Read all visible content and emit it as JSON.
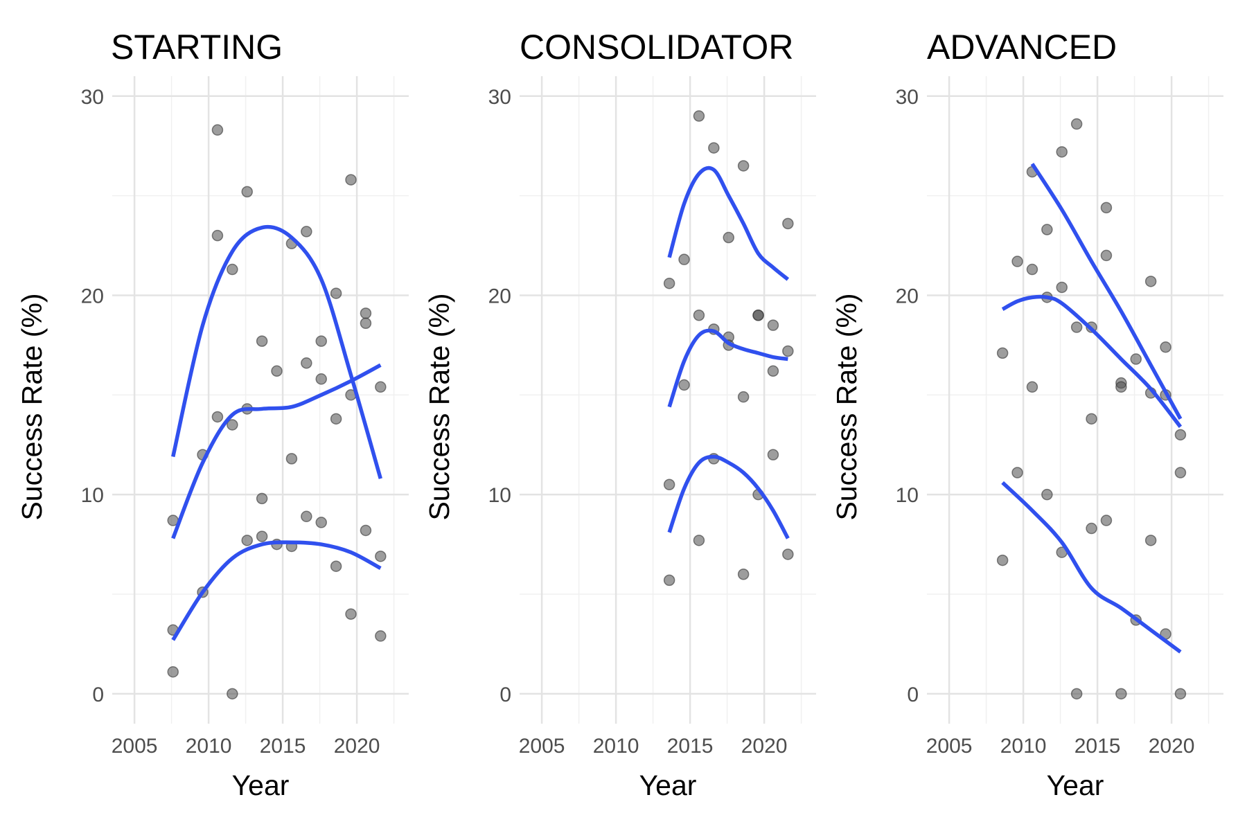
{
  "chart_data": [
    {
      "type": "scatter",
      "title": "STARTING",
      "xlabel": "Year",
      "ylabel": "Success Rate (%)",
      "xlim": [
        2003.5,
        2023.5
      ],
      "ylim": [
        -1.5,
        31
      ],
      "xticks": [
        "2005",
        "2010",
        "2015",
        "2020"
      ],
      "yticks": [
        "0",
        "10",
        "20",
        "30"
      ],
      "grid": true,
      "colors": {
        "points": "#4d4d4d",
        "smooth": "#3050ee"
      },
      "points": [
        {
          "x": 2007.6,
          "y": 8.7
        },
        {
          "x": 2007.6,
          "y": 3.2
        },
        {
          "x": 2007.6,
          "y": 1.1
        },
        {
          "x": 2009.6,
          "y": 12.0
        },
        {
          "x": 2009.6,
          "y": 5.1
        },
        {
          "x": 2010.6,
          "y": 28.3
        },
        {
          "x": 2010.6,
          "y": 23.0
        },
        {
          "x": 2010.6,
          "y": 13.9
        },
        {
          "x": 2011.6,
          "y": 21.3
        },
        {
          "x": 2011.6,
          "y": 13.5
        },
        {
          "x": 2011.6,
          "y": 0.0
        },
        {
          "x": 2012.6,
          "y": 25.2
        },
        {
          "x": 2012.6,
          "y": 14.3
        },
        {
          "x": 2012.6,
          "y": 7.7
        },
        {
          "x": 2013.6,
          "y": 17.7
        },
        {
          "x": 2013.6,
          "y": 9.8
        },
        {
          "x": 2013.6,
          "y": 7.9
        },
        {
          "x": 2014.6,
          "y": 16.2
        },
        {
          "x": 2014.6,
          "y": 7.5
        },
        {
          "x": 2015.6,
          "y": 22.6
        },
        {
          "x": 2015.6,
          "y": 11.8
        },
        {
          "x": 2015.6,
          "y": 7.4
        },
        {
          "x": 2016.6,
          "y": 23.2
        },
        {
          "x": 2016.6,
          "y": 16.6
        },
        {
          "x": 2016.6,
          "y": 8.9
        },
        {
          "x": 2017.6,
          "y": 17.7
        },
        {
          "x": 2017.6,
          "y": 15.8
        },
        {
          "x": 2017.6,
          "y": 8.6
        },
        {
          "x": 2018.6,
          "y": 20.1
        },
        {
          "x": 2018.6,
          "y": 13.8
        },
        {
          "x": 2018.6,
          "y": 6.4
        },
        {
          "x": 2019.6,
          "y": 25.8
        },
        {
          "x": 2019.6,
          "y": 15.0
        },
        {
          "x": 2019.6,
          "y": 4.0
        },
        {
          "x": 2020.6,
          "y": 19.1
        },
        {
          "x": 2020.6,
          "y": 18.6
        },
        {
          "x": 2020.6,
          "y": 8.2
        },
        {
          "x": 2021.6,
          "y": 15.4
        },
        {
          "x": 2021.6,
          "y": 6.9
        },
        {
          "x": 2021.6,
          "y": 2.9
        }
      ],
      "series": [
        {
          "x": [
            2007.6,
            2009.6,
            2011.6,
            2013.6,
            2015.6,
            2017.6,
            2019.6,
            2021.6
          ],
          "y": [
            11.9,
            18.5,
            22.2,
            23.4,
            22.9,
            20.8,
            16.0,
            10.8
          ]
        },
        {
          "x": [
            2007.6,
            2009.6,
            2011.6,
            2013.6,
            2015.6,
            2017.6,
            2019.6,
            2021.6
          ],
          "y": [
            7.8,
            11.6,
            14.0,
            14.3,
            14.4,
            15.0,
            15.7,
            16.5
          ]
        },
        {
          "x": [
            2007.6,
            2009.6,
            2011.6,
            2013.6,
            2015.6,
            2017.6,
            2019.6,
            2021.6
          ],
          "y": [
            2.7,
            5.1,
            6.8,
            7.5,
            7.6,
            7.5,
            7.1,
            6.3
          ]
        }
      ]
    },
    {
      "type": "scatter",
      "title": "CONSOLIDATOR",
      "xlabel": "Year",
      "ylabel": "Success Rate (%)",
      "xlim": [
        2003.5,
        2023.5
      ],
      "ylim": [
        -1.5,
        31
      ],
      "xticks": [
        "2005",
        "2010",
        "2015",
        "2020"
      ],
      "yticks": [
        "0",
        "10",
        "20",
        "30"
      ],
      "grid": true,
      "colors": {
        "points": "#4d4d4d",
        "smooth": "#3050ee"
      },
      "points": [
        {
          "x": 2013.6,
          "y": 20.6
        },
        {
          "x": 2013.6,
          "y": 10.5
        },
        {
          "x": 2013.6,
          "y": 5.7
        },
        {
          "x": 2014.6,
          "y": 21.8
        },
        {
          "x": 2014.6,
          "y": 15.5
        },
        {
          "x": 2015.6,
          "y": 29.0
        },
        {
          "x": 2015.6,
          "y": 19.0
        },
        {
          "x": 2015.6,
          "y": 7.7
        },
        {
          "x": 2016.6,
          "y": 27.4
        },
        {
          "x": 2016.6,
          "y": 18.3
        },
        {
          "x": 2016.6,
          "y": 11.8
        },
        {
          "x": 2017.6,
          "y": 22.9
        },
        {
          "x": 2017.6,
          "y": 17.9
        },
        {
          "x": 2017.6,
          "y": 17.5
        },
        {
          "x": 2018.6,
          "y": 26.5
        },
        {
          "x": 2018.6,
          "y": 14.9
        },
        {
          "x": 2018.6,
          "y": 6.0
        },
        {
          "x": 2019.6,
          "y": 19.0
        },
        {
          "x": 2019.6,
          "y": 19.0
        },
        {
          "x": 2019.6,
          "y": 10.0
        },
        {
          "x": 2020.6,
          "y": 18.5
        },
        {
          "x": 2020.6,
          "y": 16.2
        },
        {
          "x": 2020.6,
          "y": 12.0
        },
        {
          "x": 2021.6,
          "y": 23.6
        },
        {
          "x": 2021.6,
          "y": 17.2
        },
        {
          "x": 2021.6,
          "y": 7.0
        }
      ],
      "series": [
        {
          "x": [
            2013.6,
            2014.6,
            2015.6,
            2016.6,
            2017.6,
            2018.6,
            2019.6,
            2020.6,
            2021.6
          ],
          "y": [
            21.9,
            24.6,
            26.1,
            26.3,
            25.0,
            23.6,
            22.1,
            21.4,
            20.8
          ]
        },
        {
          "x": [
            2013.6,
            2014.6,
            2015.6,
            2016.6,
            2017.6,
            2018.6,
            2019.6,
            2020.6,
            2021.6
          ],
          "y": [
            14.4,
            16.7,
            18.0,
            18.2,
            17.6,
            17.3,
            17.1,
            16.9,
            16.8
          ]
        },
        {
          "x": [
            2013.6,
            2014.6,
            2015.6,
            2016.6,
            2017.6,
            2018.6,
            2019.6,
            2020.6,
            2021.6
          ],
          "y": [
            8.1,
            10.3,
            11.6,
            11.9,
            11.6,
            11.1,
            10.3,
            9.2,
            7.8
          ]
        }
      ]
    },
    {
      "type": "scatter",
      "title": "ADVANCED",
      "xlabel": "Year",
      "ylabel": "Success Rate (%)",
      "xlim": [
        2003.5,
        2023.5
      ],
      "ylim": [
        -1.5,
        31
      ],
      "xticks": [
        "2005",
        "2010",
        "2015",
        "2020"
      ],
      "yticks": [
        "0",
        "10",
        "20",
        "30"
      ],
      "grid": true,
      "colors": {
        "points": "#4d4d4d",
        "smooth": "#3050ee"
      },
      "points": [
        {
          "x": 2008.6,
          "y": 17.1
        },
        {
          "x": 2008.6,
          "y": 6.7
        },
        {
          "x": 2009.6,
          "y": 21.7
        },
        {
          "x": 2009.6,
          "y": 11.1
        },
        {
          "x": 2010.6,
          "y": 26.2
        },
        {
          "x": 2010.6,
          "y": 21.3
        },
        {
          "x": 2010.6,
          "y": 15.4
        },
        {
          "x": 2011.6,
          "y": 23.3
        },
        {
          "x": 2011.6,
          "y": 19.9
        },
        {
          "x": 2011.6,
          "y": 10.0
        },
        {
          "x": 2012.6,
          "y": 27.2
        },
        {
          "x": 2012.6,
          "y": 20.4
        },
        {
          "x": 2012.6,
          "y": 7.1
        },
        {
          "x": 2013.6,
          "y": 28.6
        },
        {
          "x": 2013.6,
          "y": 18.4
        },
        {
          "x": 2013.6,
          "y": 0.0
        },
        {
          "x": 2014.6,
          "y": 18.4
        },
        {
          "x": 2014.6,
          "y": 13.8
        },
        {
          "x": 2014.6,
          "y": 8.3
        },
        {
          "x": 2015.6,
          "y": 24.4
        },
        {
          "x": 2015.6,
          "y": 22.0
        },
        {
          "x": 2015.6,
          "y": 8.7
        },
        {
          "x": 2016.6,
          "y": 15.6
        },
        {
          "x": 2016.6,
          "y": 15.4
        },
        {
          "x": 2016.6,
          "y": 0.0
        },
        {
          "x": 2017.6,
          "y": 16.8
        },
        {
          "x": 2017.6,
          "y": 3.7
        },
        {
          "x": 2018.6,
          "y": 20.7
        },
        {
          "x": 2018.6,
          "y": 15.1
        },
        {
          "x": 2018.6,
          "y": 7.7
        },
        {
          "x": 2019.6,
          "y": 17.4
        },
        {
          "x": 2019.6,
          "y": 15.0
        },
        {
          "x": 2019.6,
          "y": 3.0
        },
        {
          "x": 2020.6,
          "y": 13.0
        },
        {
          "x": 2020.6,
          "y": 11.1
        },
        {
          "x": 2020.6,
          "y": 0.0
        }
      ],
      "series": [
        {
          "x": [
            2010.6,
            2012.6,
            2014.6,
            2016.6,
            2018.6,
            2020.6
          ],
          "y": [
            26.6,
            24.3,
            21.7,
            19.2,
            16.5,
            13.8
          ]
        },
        {
          "x": [
            2008.6,
            2009.6,
            2010.6,
            2011.6,
            2012.6,
            2014.6,
            2016.6,
            2018.6,
            2020.6
          ],
          "y": [
            19.3,
            19.7,
            19.9,
            19.9,
            19.6,
            18.3,
            16.8,
            15.3,
            13.4
          ]
        },
        {
          "x": [
            2008.6,
            2010.6,
            2012.6,
            2014.6,
            2016.6,
            2018.6,
            2020.6
          ],
          "y": [
            10.6,
            9.2,
            7.6,
            5.3,
            4.3,
            3.2,
            2.1
          ]
        }
      ]
    }
  ]
}
